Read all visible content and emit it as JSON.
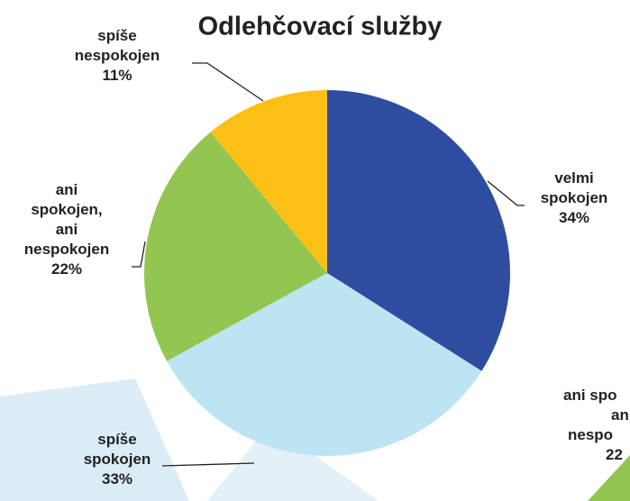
{
  "chart_data": {
    "type": "pie",
    "title": "Odlehčovací služby",
    "categories": [
      "velmi spokojen",
      "spíše spokojen",
      "ani spokojen, ani nespokojen",
      "spíše nespokojen"
    ],
    "values": [
      34,
      33,
      22,
      11
    ],
    "value_labels": [
      "34%",
      "33%",
      "22%",
      "11%"
    ],
    "colors": [
      "#2e4ca0",
      "#bde4f2",
      "#92c650",
      "#fbbf16"
    ]
  },
  "background_text": [
    "ani spo",
    "an",
    "nespo",
    "22"
  ]
}
